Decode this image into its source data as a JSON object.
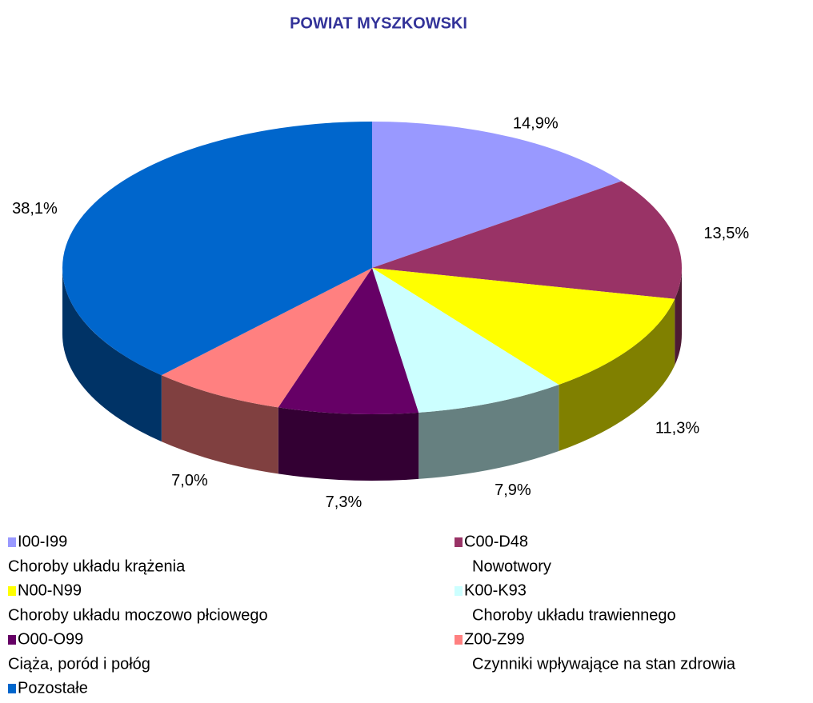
{
  "chart_data": {
    "type": "pie3d",
    "title": "POWIAT MYSZKOWSKI",
    "categories": [
      "I00-I99",
      "C00-D48",
      "N00-N99",
      "K00-K93",
      "O00-O99",
      "Z00-Z99",
      "Pozostałe"
    ],
    "descriptions": [
      "Choroby układu krążenia",
      "Nowotwory",
      "Choroby układu moczowo płciowego",
      "Choroby układu trawiennego",
      "Ciąża, poród i połóg",
      "Czynniki wpływające na stan zdrowia",
      null
    ],
    "values": [
      14.9,
      13.5,
      11.3,
      7.9,
      7.3,
      7.0,
      38.1
    ],
    "value_labels": [
      "14,9%",
      "13,5%",
      "11,3%",
      "7,9%",
      "7,3%",
      "7,0%",
      "38,1%"
    ],
    "colors": [
      "#9999ff",
      "#993366",
      "#ffff00",
      "#ccffff",
      "#660066",
      "#ff8080",
      "#0066cc"
    ]
  }
}
